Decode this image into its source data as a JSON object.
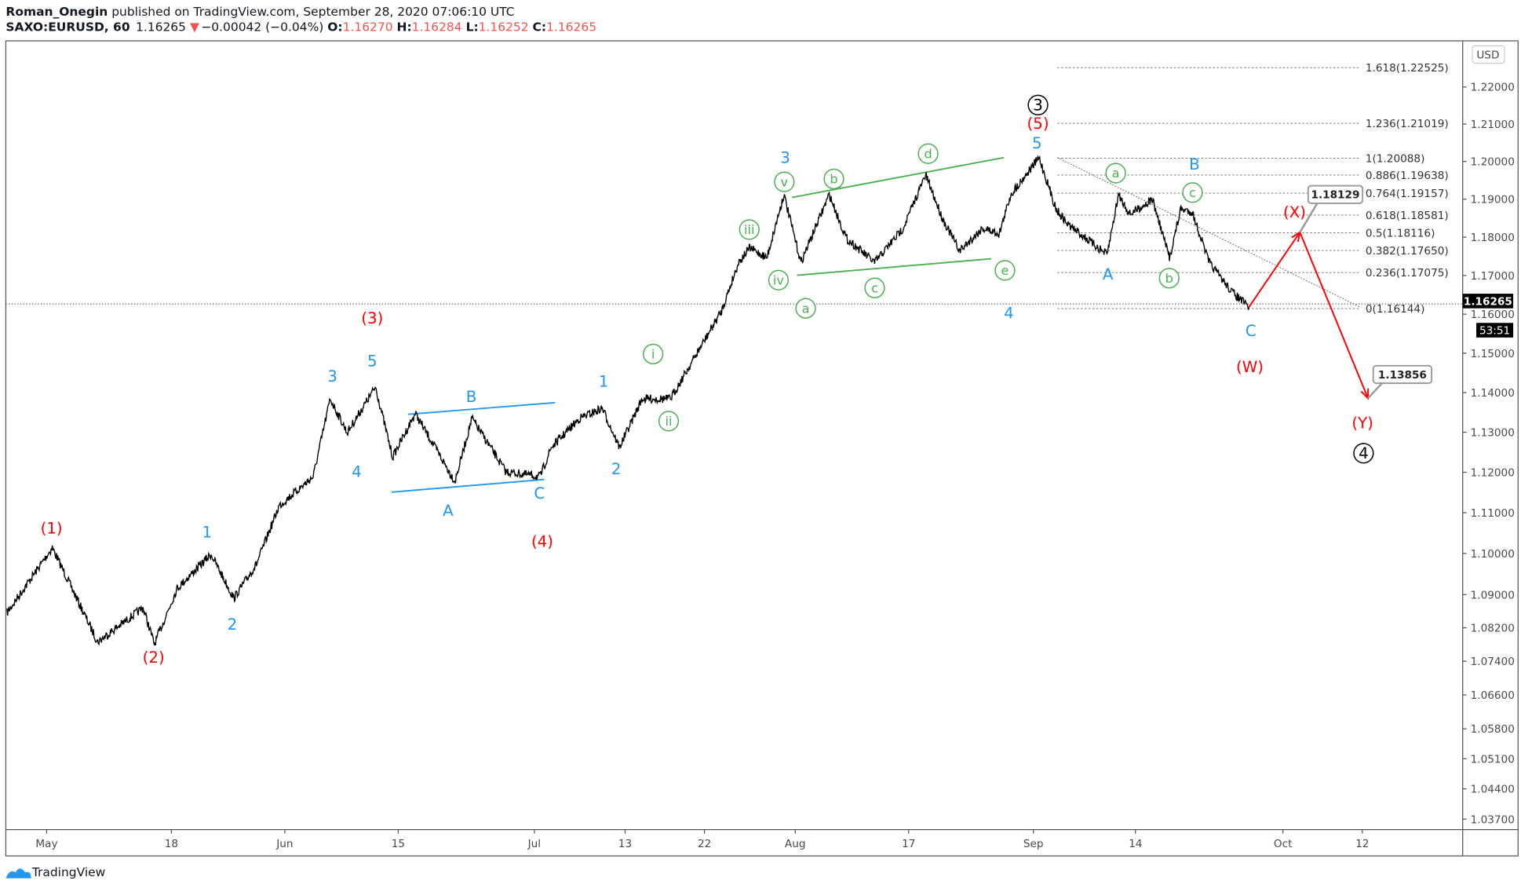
{
  "header": {
    "author": "Roman_Onegin",
    "published": " published on TradingView.com, September 28, 2020 07:06:10 UTC",
    "symbol": "SAXO:EURUSD, 60",
    "last": "1.16265",
    "change": "−0.00042 (−0.04%)",
    "o_label": "O:",
    "o": "1.16270",
    "h_label": "H:",
    "h": "1.16284",
    "l_label": "L:",
    "l": "1.16252",
    "c_label": "C:",
    "c": "1.16265"
  },
  "footer": {
    "brand": "TradingView"
  },
  "currency_button": "USD",
  "colors": {
    "price": "#000000",
    "red": "#ff0000",
    "blue": "#2196f3",
    "green": "#4caf50",
    "down": "#ef5350"
  },
  "chart_data": {
    "type": "line",
    "scale": "log",
    "ylim": [
      1.035,
      1.232
    ],
    "y_ticks": [
      "1.03700",
      "1.04400",
      "1.05100",
      "1.05800",
      "1.06600",
      "1.07400",
      "1.08200",
      "1.09000",
      "1.10000",
      "1.11000",
      "1.12000",
      "1.13000",
      "1.14000",
      "1.15000",
      "1.16000",
      "1.17000",
      "1.18000",
      "1.19000",
      "1.20000",
      "1.21000",
      "1.22000"
    ],
    "x_ticks": [
      {
        "label": "May",
        "date": "2020-05-01"
      },
      {
        "label": "18",
        "date": "2020-05-18"
      },
      {
        "label": "Jun",
        "date": "2020-06-01"
      },
      {
        "label": "15",
        "date": "2020-06-15"
      },
      {
        "label": "Jul",
        "date": "2020-07-01"
      },
      {
        "label": "13",
        "date": "2020-07-13"
      },
      {
        "label": "22",
        "date": "2020-07-22"
      },
      {
        "label": "Aug",
        "date": "2020-08-03"
      },
      {
        "label": "17",
        "date": "2020-08-17"
      },
      {
        "label": "Sep",
        "date": "2020-09-01"
      },
      {
        "label": "14",
        "date": "2020-09-14"
      },
      {
        "label": "Oct",
        "date": "2020-10-01"
      },
      {
        "label": "12",
        "date": "2020-10-12"
      }
    ],
    "last_price": {
      "value": "1.16265",
      "countdown": "53:51"
    },
    "series": [
      {
        "points": [
          [
            "2020-04-27 12:00",
            1.0856
          ],
          [
            "2020-04-30 12:00",
            1.0974
          ],
          [
            "2020-05-01 12:00",
            1.1014
          ],
          [
            "2020-05-07 12:00",
            1.0786
          ],
          [
            "2020-05-13 12:00",
            1.0868
          ],
          [
            "2020-05-14 12:00",
            1.0781
          ],
          [
            "2020-05-18 12:00",
            1.0915
          ],
          [
            "2020-05-21 12:00",
            1.0998
          ],
          [
            "2020-05-25 12:00",
            1.0891
          ],
          [
            "2020-05-27 12:00",
            1.0974
          ],
          [
            "2020-05-29 12:00",
            1.1117
          ],
          [
            "2020-06-03 12:00",
            1.1189
          ],
          [
            "2020-06-05 00:00",
            1.1384
          ],
          [
            "2020-06-08 12:00",
            1.1299
          ],
          [
            "2020-06-11 00:00",
            1.1414
          ],
          [
            "2020-06-12 12:00",
            1.1238
          ],
          [
            "2020-06-16 12:00",
            1.1347
          ],
          [
            "2020-06-22 00:00",
            1.1177
          ],
          [
            "2020-06-23 12:00",
            1.1335
          ],
          [
            "2020-06-26 12:00",
            1.1201
          ],
          [
            "2020-07-01 12:00",
            1.1189
          ],
          [
            "2020-07-02 12:00",
            1.1262
          ],
          [
            "2020-07-07 00:00",
            1.1335
          ],
          [
            "2020-07-09 00:00",
            1.136
          ],
          [
            "2020-07-10 12:00",
            1.1262
          ],
          [
            "2020-07-14 12:00",
            1.1384
          ],
          [
            "2020-07-17 00:00",
            1.1384
          ],
          [
            "2020-07-21 12:00",
            1.1508
          ],
          [
            "2020-07-23 12:00",
            1.1608
          ],
          [
            "2020-07-27 00:00",
            1.1734
          ],
          [
            "2020-07-28 00:00",
            1.1772
          ],
          [
            "2020-07-29 12:00",
            1.1746
          ],
          [
            "2020-07-31 00:00",
            1.1912
          ],
          [
            "2020-08-03 12:00",
            1.1734
          ],
          [
            "2020-08-06 00:00",
            1.1912
          ],
          [
            "2020-08-07 12:00",
            1.1797
          ],
          [
            "2020-08-12 00:00",
            1.1734
          ],
          [
            "2020-08-14 12:00",
            1.1823
          ],
          [
            "2020-08-18 12:00",
            1.1964
          ],
          [
            "2020-08-20 00:00",
            1.1848
          ],
          [
            "2020-08-21 12:00",
            1.1764
          ],
          [
            "2020-08-25 12:00",
            1.1823
          ],
          [
            "2020-08-27 00:00",
            1.181
          ],
          [
            "2020-08-28 00:00",
            1.1912
          ],
          [
            "2020-09-01 12:00",
            1.201
          ],
          [
            "2020-09-03 00:00",
            1.1874
          ],
          [
            "2020-09-04 00:00",
            1.1835
          ],
          [
            "2020-09-09 12:00",
            1.1754
          ],
          [
            "2020-09-10 12:00",
            1.1912
          ],
          [
            "2020-09-11 12:00",
            1.1861
          ],
          [
            "2020-09-15 12:00",
            1.1899
          ],
          [
            "2020-09-17 00:00",
            1.1746
          ],
          [
            "2020-09-18 00:00",
            1.1874
          ],
          [
            "2020-09-21 00:00",
            1.1866
          ],
          [
            "2020-09-22 12:00",
            1.1734
          ],
          [
            "2020-09-24 12:00",
            1.1658
          ],
          [
            "2020-09-28 00:00",
            1.1618
          ]
        ]
      }
    ],
    "fib_levels": [
      {
        "label": "1.618(1.22525)",
        "value": 1.22525
      },
      {
        "label": "1.236(1.21019)",
        "value": 1.21019
      },
      {
        "label": "1(1.20088)",
        "value": 1.20088
      },
      {
        "label": "0.886(1.19638)",
        "value": 1.19638
      },
      {
        "label": "0.764(1.19157)",
        "value": 1.19157
      },
      {
        "label": "0.618(1.18581)",
        "value": 1.18581
      },
      {
        "label": "0.5(1.18116)",
        "value": 1.18116
      },
      {
        "label": "0.382(1.17650)",
        "value": 1.1765
      },
      {
        "label": "0.236(1.17075)",
        "value": 1.17075
      },
      {
        "label": "0(1.16144)",
        "value": 1.16144
      }
    ],
    "projection": [
      {
        "date": "2020-09-28 00:00",
        "value": 1.1618
      },
      {
        "date": "2020-10-02 12:00",
        "value": 1.18129,
        "callout": "1.18129"
      },
      {
        "date": "2020-10-12 12:00",
        "value": 1.13856,
        "callout": "1.13856"
      }
    ],
    "wave_labels": {
      "red": [
        "(1)",
        "(2)",
        "(3)",
        "(4)",
        "(5)",
        "(W)",
        "(X)",
        "(Y)"
      ],
      "blue": [
        "1",
        "2",
        "3",
        "4",
        "5",
        "A",
        "B",
        "C",
        "1",
        "2",
        "3",
        "4",
        "5",
        "A",
        "B",
        "C"
      ],
      "green_circled": [
        "v",
        "iii",
        "iv",
        "a",
        "b",
        "c",
        "d",
        "e",
        "i",
        "ii",
        "a",
        "b",
        "c"
      ],
      "black_circled": [
        "3",
        "4"
      ]
    }
  }
}
